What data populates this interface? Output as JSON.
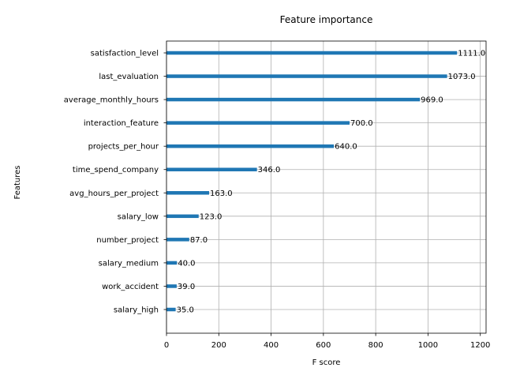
{
  "chart_data": {
    "type": "bar",
    "orientation": "horizontal",
    "title": "Feature importance",
    "xlabel": "F score",
    "ylabel": "Features",
    "xlim": [
      0,
      1222
    ],
    "xticks": [
      0,
      200,
      400,
      600,
      800,
      1000,
      1200
    ],
    "grid": true,
    "bar_color": "#1f77b4",
    "categories": [
      "satisfaction_level",
      "last_evaluation",
      "average_monthly_hours",
      "interaction_feature",
      "projects_per_hour",
      "time_spend_company",
      "avg_hours_per_project",
      "salary_low",
      "number_project",
      "salary_medium",
      "work_accident",
      "salary_high"
    ],
    "values": [
      1111,
      1073,
      969,
      700,
      640,
      346,
      163,
      123,
      87,
      40,
      39,
      35
    ],
    "value_labels": [
      "1111.0",
      "1073.0",
      "969.0",
      "700.0",
      "640.0",
      "346.0",
      "163.0",
      "123.0",
      "87.0",
      "40.0",
      "39.0",
      "35.0"
    ]
  }
}
